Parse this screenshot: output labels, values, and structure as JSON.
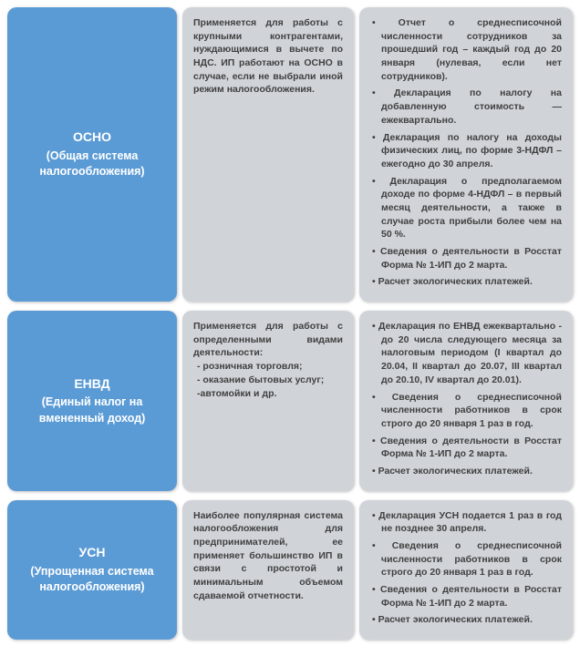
{
  "colors": {
    "blue": "#5b9bd5",
    "gray": "#d0d4d8",
    "text_dark": "#404040",
    "text_light": "#ffffff"
  },
  "rows": [
    {
      "abbr": "ОСНО",
      "full": "(Общая система налогообложения)",
      "desc": "Применяется для работы с крупными контрагентами, нуждающимися в вычете по НДС. ИП работают на ОСНО в случае, если не выбрали иной режим налогообложения.",
      "reports": [
        "Отчет о среднесписочной численности сотрудников за прошедший год – каждый год до 20 января (нулевая, если нет сотрудников).",
        "Декларация по налогу на добавленную стоимость — ежеквартально.",
        "Декларация по налогу на доходы физических лиц, по форме 3-НДФЛ – ежегодно до 30 апреля.",
        "Декларация о предполагаемом доходе по форме 4-НДФЛ – в первый месяц деятельности, а также в случае роста прибыли более чем на 50 %.",
        "Сведения о деятельности в Росстат Форма № 1-ИП до 2 марта.",
        "Расчет экологических платежей."
      ]
    },
    {
      "abbr": "ЕНВД",
      "full": "(Единый налог на вмененный доход)",
      "desc": "Применяется для работы с определенными видами деятельности:",
      "desc_sub": [
        "- розничная торговля;",
        "- оказание бытовых услуг;",
        "-автомойки и др."
      ],
      "reports": [
        "Декларация по ЕНВД ежеквартально - до 20 числа следующего месяца за налоговым периодом (I квартал до 20.04, II квартал до 20.07, III квартал до 20.10, IV квартал до 20.01).",
        "Сведения о среднесписочной численности работников в срок строго до 20 января 1 раз в год.",
        "Сведения о деятельности в Росстат Форма № 1-ИП до 2 марта.",
        "Расчет экологических платежей."
      ]
    },
    {
      "abbr": "УСН",
      "full": "(Упрощенная система налогообложения)",
      "desc": "Наиболее популярная система налогообложения для предпринимателей, ее применяет большинство ИП в связи с простотой и минимальным объемом сдаваемой отчетности.",
      "reports": [
        "Декларация УСН подается 1 раз в год не позднее 30 апреля.",
        "Сведения о среднесписочной численности работников в срок строго до 20 января 1 раз в год.",
        "Сведения о деятельности в Росстат Форма № 1-ИП до 2 марта.",
        "Расчет экологических платежей."
      ]
    }
  ]
}
